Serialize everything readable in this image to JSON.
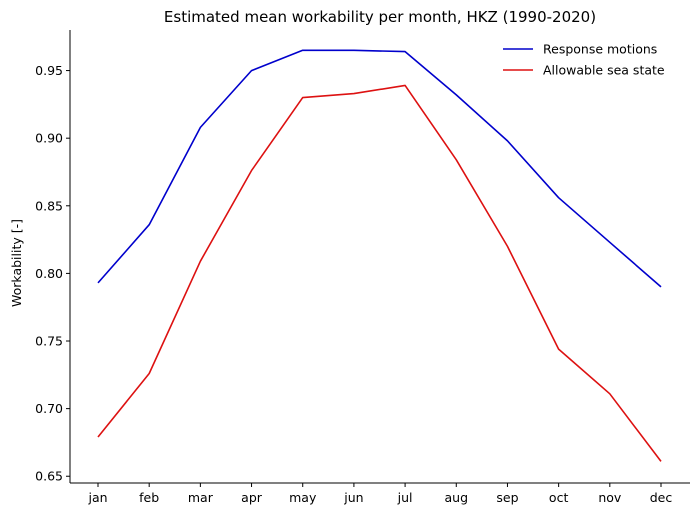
{
  "chart_data": {
    "type": "line",
    "title": "Estimated mean workability per month, HKZ (1990-2020)",
    "xlabel": "",
    "ylabel": "Workability [-]",
    "categories": [
      "jan",
      "feb",
      "mar",
      "apr",
      "may",
      "jun",
      "jul",
      "aug",
      "sep",
      "oct",
      "nov",
      "dec"
    ],
    "ylim": [
      0.645,
      0.98
    ],
    "yticks": [
      0.65,
      0.7,
      0.75,
      0.8,
      0.85,
      0.9,
      0.95
    ],
    "ytick_labels": [
      "0.65",
      "0.70",
      "0.75",
      "0.80",
      "0.85",
      "0.90",
      "0.95"
    ],
    "grid": false,
    "legend_position": "top-right",
    "series": [
      {
        "name": "Response motions",
        "color": "#0000cc",
        "values": [
          0.793,
          0.836,
          0.908,
          0.95,
          0.965,
          0.965,
          0.964,
          0.932,
          0.898,
          0.856,
          0.823,
          0.79
        ]
      },
      {
        "name": "Allowable sea state",
        "color": "#dd1111",
        "values": [
          0.679,
          0.726,
          0.809,
          0.876,
          0.93,
          0.933,
          0.939,
          0.884,
          0.82,
          0.744,
          0.711,
          0.661
        ]
      }
    ]
  }
}
